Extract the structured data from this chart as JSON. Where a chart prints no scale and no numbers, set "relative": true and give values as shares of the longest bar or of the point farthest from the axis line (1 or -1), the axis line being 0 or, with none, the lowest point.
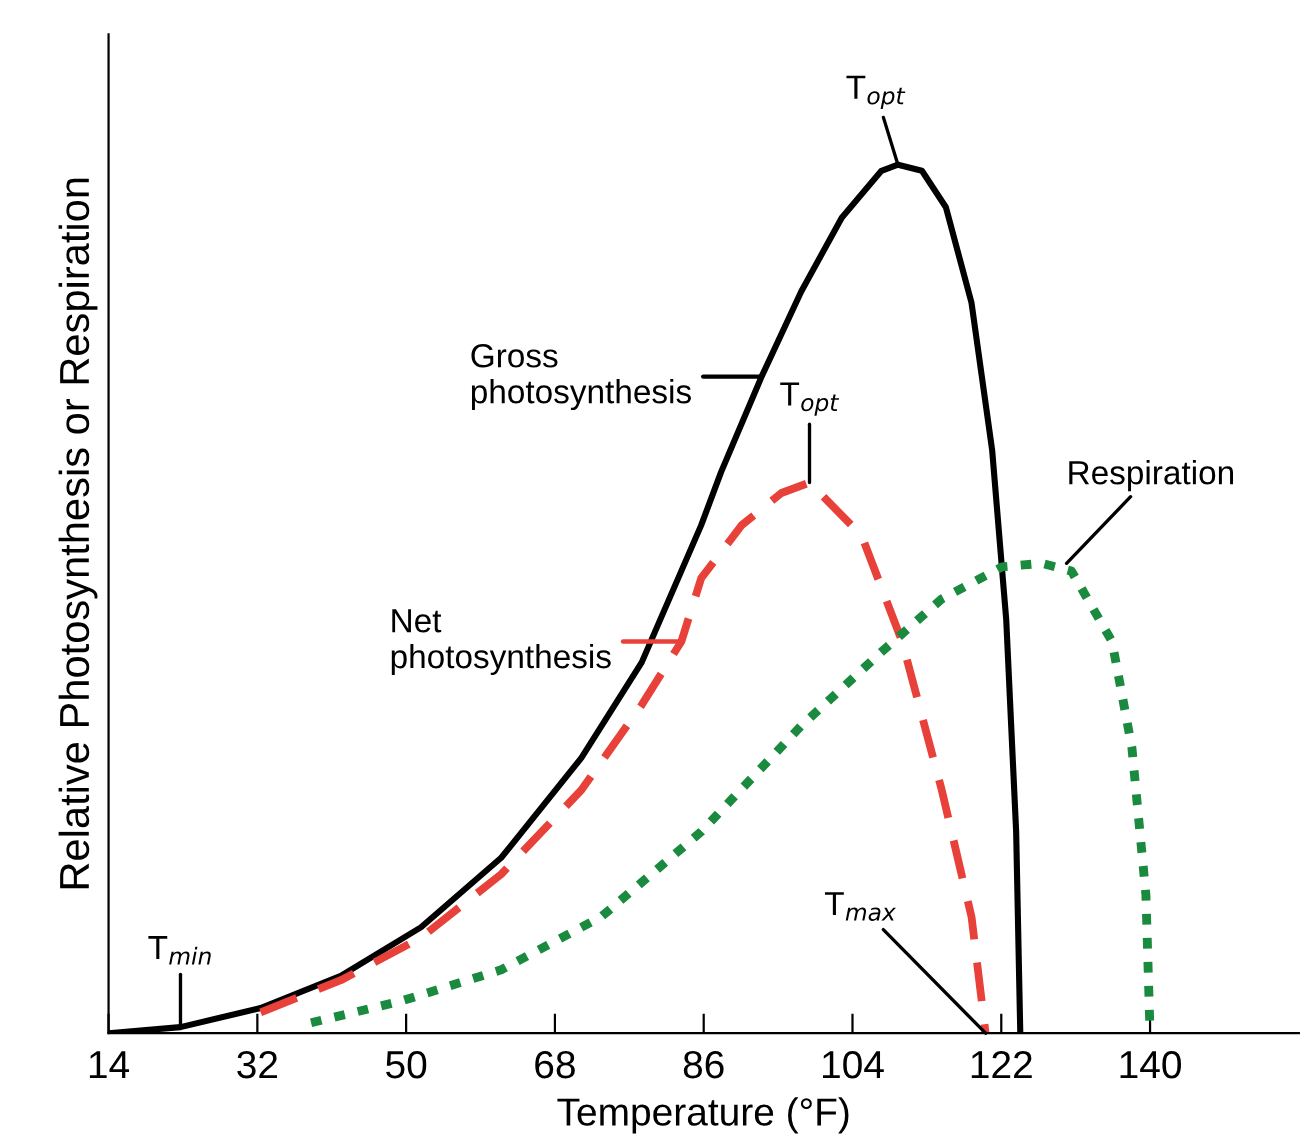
{
  "chart_data": {
    "type": "line",
    "relative": true,
    "xlabel": "Temperature (°F)",
    "ylabel": "Relative Photosynthesis or Respiration",
    "xlim": [
      14,
      158
    ],
    "xticks": [
      14,
      32,
      50,
      68,
      86,
      104,
      122,
      140
    ],
    "grid": false,
    "legend": "left",
    "marker": "none",
    "series": [
      {
        "name": "Gross photosynthesis",
        "color": "#000000",
        "line_style": "solid",
        "x": [
          14,
          22.7,
          32.4,
          42.1,
          51.8,
          61.5,
          71.2,
          78.5,
          85.7,
          88.1,
          93.0,
          97.8,
          102.7,
          107.5,
          109.5,
          112.4,
          115.3,
          118.4,
          120.9,
          122.6,
          123.8,
          124.3
        ],
        "values": [
          0,
          0.007,
          0.029,
          0.066,
          0.122,
          0.202,
          0.317,
          0.427,
          0.585,
          0.646,
          0.756,
          0.854,
          0.939,
          0.993,
          1,
          0.993,
          0.951,
          0.841,
          0.671,
          0.476,
          0.232,
          0
        ]
      },
      {
        "name": "Net photosynthesis",
        "color": "#e8413a",
        "line_style": "dashed",
        "x": [
          32.4,
          42.1,
          51.8,
          61.5,
          71.2,
          78.5,
          83.3,
          85.7,
          90.6,
          95.4,
          98.8,
          105.1,
          110.0,
          114.8,
          118.4,
          120.1
        ],
        "values": [
          0.024,
          0.061,
          0.11,
          0.183,
          0.28,
          0.378,
          0.451,
          0.524,
          0.585,
          0.622,
          0.634,
          0.573,
          0.451,
          0.28,
          0.134,
          0
        ]
      },
      {
        "name": "Respiration",
        "color": "#1a8a3e",
        "line_style": "dotted",
        "x": [
          38.5,
          49.4,
          61.5,
          73.6,
          85.7,
          97.8,
          107.5,
          114.8,
          122.1,
          126.9,
          130.5,
          135.4,
          137.8,
          139.5,
          140
        ],
        "values": [
          0.012,
          0.037,
          0.073,
          0.134,
          0.232,
          0.354,
          0.439,
          0.5,
          0.537,
          0.541,
          0.532,
          0.451,
          0.329,
          0.159,
          0
        ]
      }
    ],
    "annotations": [
      {
        "text": "T$_{opt}$",
        "x": 109.5,
        "y": 1
      },
      {
        "text": "T$_{opt}$",
        "x": 98.8,
        "y": 0.634
      },
      {
        "text": "T$_{min}$",
        "x": 22.7,
        "y": 0.007
      },
      {
        "text": "T$_{max}$",
        "x": 120.1,
        "y": 0
      }
    ]
  }
}
